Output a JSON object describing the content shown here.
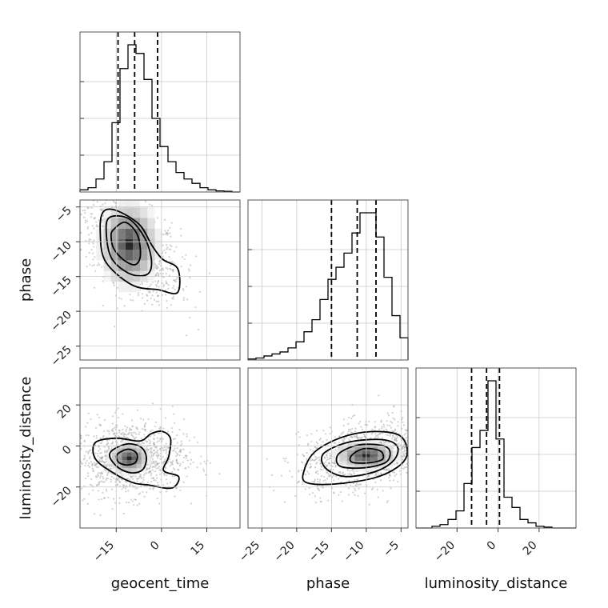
{
  "chart_data": {
    "type": "corner",
    "parameters": [
      "geocent_time",
      "phase",
      "luminosity_distance"
    ],
    "axis_labels": {
      "geocent_time": "geocent_time",
      "phase": "phase",
      "luminosity_distance": "luminosity_distance"
    },
    "ranges": {
      "geocent_time": [
        -27,
        26
      ],
      "phase": [
        -27,
        -4
      ],
      "luminosity_distance": [
        -40,
        38
      ]
    },
    "ticks": {
      "geocent_time": [
        -15,
        0,
        15
      ],
      "phase": [
        -25,
        -20,
        -15,
        -10,
        -5
      ],
      "luminosity_distance": [
        -20,
        0,
        20
      ]
    },
    "tick_labels": {
      "geocent_time": [
        "−15",
        "0",
        "15"
      ],
      "phase": [
        "−25",
        "−20",
        "−15",
        "−10",
        "−5"
      ],
      "luminosity_distance": [
        "−20",
        "0",
        "20"
      ]
    },
    "quantiles": {
      "geocent_time": [
        -14.4,
        -8.9,
        -1.3
      ],
      "phase": [
        -15.0,
        -11.3,
        -8.6
      ],
      "luminosity_distance": [
        -12.9,
        -5.6,
        0.7
      ]
    },
    "histograms": {
      "geocent_time": {
        "bin_edges": [
          -27,
          -24.35,
          -21.7,
          -19.05,
          -16.4,
          -13.75,
          -11.1,
          -8.45,
          -5.8,
          -3.15,
          -0.5,
          2.15,
          4.8,
          7.45,
          10.1,
          12.75,
          15.4,
          18.05,
          20.7,
          23.35,
          26
        ],
        "counts": [
          1,
          2,
          6,
          14,
          32,
          57,
          68,
          64,
          52,
          34,
          21,
          14,
          9,
          6,
          4,
          2,
          1,
          0.5,
          0.3,
          0
        ]
      },
      "phase": {
        "bin_edges": [
          -27,
          -25.85,
          -24.7,
          -23.55,
          -22.4,
          -21.25,
          -20.1,
          -18.95,
          -17.8,
          -16.65,
          -15.5,
          -14.35,
          -13.2,
          -12.05,
          -10.9,
          -9.75,
          -8.6,
          -7.45,
          -6.3,
          -5.15,
          -4
        ],
        "counts": [
          0.5,
          1,
          2,
          3,
          4,
          6,
          9,
          14,
          20,
          30,
          40,
          46,
          53,
          63,
          73,
          73,
          61,
          41,
          22,
          11
        ]
      },
      "luminosity_distance": {
        "bin_edges": [
          -40,
          -36.1,
          -32.2,
          -28.3,
          -24.4,
          -20.5,
          -16.6,
          -12.7,
          -8.8,
          -4.9,
          -1,
          2.9,
          6.8,
          10.7,
          14.6,
          18.5,
          22.4,
          26.3,
          30.2,
          34.1,
          38
        ],
        "counts": [
          0,
          0,
          1,
          2,
          5,
          10,
          26,
          47,
          57,
          86,
          52,
          18,
          12,
          5,
          3,
          1,
          0.5,
          0,
          0,
          0
        ]
      }
    },
    "panels_2d": [
      {
        "x": "geocent_time",
        "y": "phase",
        "center": [
          -10.7,
          -10.4
        ],
        "contours": [
          [
            [
              -16,
              -8.3
            ],
            [
              -12,
              -7.2
            ],
            [
              -8,
              -9
            ],
            [
              -7,
              -12
            ],
            [
              -8.8,
              -13.3
            ],
            [
              -12.6,
              -12.6
            ],
            [
              -15.8,
              -11
            ],
            [
              -16.7,
              -9.3
            ]
          ],
          [
            [
              -17.2,
              -6.5
            ],
            [
              -10.8,
              -6.7
            ],
            [
              -5.5,
              -9.5
            ],
            [
              -3.3,
              -12.8
            ],
            [
              -4.8,
              -14.7
            ],
            [
              -10.5,
              -14.6
            ],
            [
              -16.5,
              -12.4
            ],
            [
              -18.3,
              -8.7
            ]
          ],
          [
            [
              -19.3,
              -5.7
            ],
            [
              -15,
              -5.5
            ],
            [
              -7.4,
              -7.5
            ],
            [
              -3.2,
              -10.5
            ],
            [
              0.3,
              -12.5
            ],
            [
              5.4,
              -13.9
            ],
            [
              5.3,
              -17.3
            ],
            [
              -1.1,
              -16.9
            ],
            [
              -9.8,
              -16.2
            ],
            [
              -18.6,
              -12.8
            ],
            [
              -20.3,
              -8.5
            ]
          ]
        ]
      },
      {
        "x": "geocent_time",
        "y": "luminosity_distance",
        "center": [
          -10.7,
          -6.0
        ],
        "contours": [
          [
            [
              -14.7,
              -4.2
            ],
            [
              -11.1,
              -1.6
            ],
            [
              -8.2,
              -3.7
            ],
            [
              -8.6,
              -8.0
            ],
            [
              -11.6,
              -9.3
            ],
            [
              -14.3,
              -7.8
            ]
          ],
          [
            [
              -16.2,
              -2.0
            ],
            [
              -11.3,
              1.0
            ],
            [
              -6.8,
              -0.6
            ],
            [
              -5.0,
              -5.5
            ],
            [
              -6.2,
              -11.5
            ],
            [
              -10.0,
              -13.1
            ],
            [
              -14.3,
              -10.6
            ],
            [
              -17.1,
              -5.5
            ]
          ],
          [
            [
              -21.9,
              1.7
            ],
            [
              -14.8,
              3.8
            ],
            [
              -7.2,
              2.4
            ],
            [
              -3.4,
              6.0
            ],
            [
              0.3,
              7.1
            ],
            [
              3.0,
              3.5
            ],
            [
              2.4,
              -5.1
            ],
            [
              0.7,
              -12.0
            ],
            [
              5.7,
              -15.0
            ],
            [
              3.4,
              -20.5
            ],
            [
              -4.4,
              -19.0
            ],
            [
              -9.5,
              -17.9
            ],
            [
              -15.9,
              -13.2
            ],
            [
              -21.9,
              -6.3
            ]
          ]
        ]
      },
      {
        "x": "phase",
        "y": "luminosity_distance",
        "center": [
          -10.0,
          -4.7
        ],
        "contours": [
          [
            [
              -12.1,
              -4.6
            ],
            [
              -10.4,
              -1.4
            ],
            [
              -8.0,
              -2.4
            ],
            [
              -7.7,
              -6.6
            ],
            [
              -10.0,
              -8.3
            ],
            [
              -12.1,
              -7.8
            ]
          ],
          [
            [
              -14.0,
              -4.0
            ],
            [
              -11.2,
              0.4
            ],
            [
              -7.8,
              0.3
            ],
            [
              -6.6,
              -2.6
            ],
            [
              -7.2,
              -8.0
            ],
            [
              -10.4,
              -10.7
            ],
            [
              -13.8,
              -9.8
            ]
          ],
          [
            [
              -16.1,
              -3.6
            ],
            [
              -12.3,
              2.0
            ],
            [
              -7.5,
              3.0
            ],
            [
              -5.5,
              -0.6
            ],
            [
              -6.1,
              -7.2
            ],
            [
              -8.8,
              -12.6
            ],
            [
              -13.1,
              -14.9
            ],
            [
              -15.9,
              -10.6
            ]
          ],
          [
            [
              -18.9,
              -11.6
            ],
            [
              -17.4,
              -2.9
            ],
            [
              -13.7,
              4.0
            ],
            [
              -9.3,
              7.0
            ],
            [
              -5.2,
              5.1
            ],
            [
              -4.1,
              -3.6
            ],
            [
              -5.5,
              -10.3
            ],
            [
              -9.0,
              -15.7
            ],
            [
              -14.7,
              -18.6
            ],
            [
              -18.7,
              -17.7
            ]
          ]
        ]
      }
    ],
    "grid": true,
    "legend": "none"
  }
}
